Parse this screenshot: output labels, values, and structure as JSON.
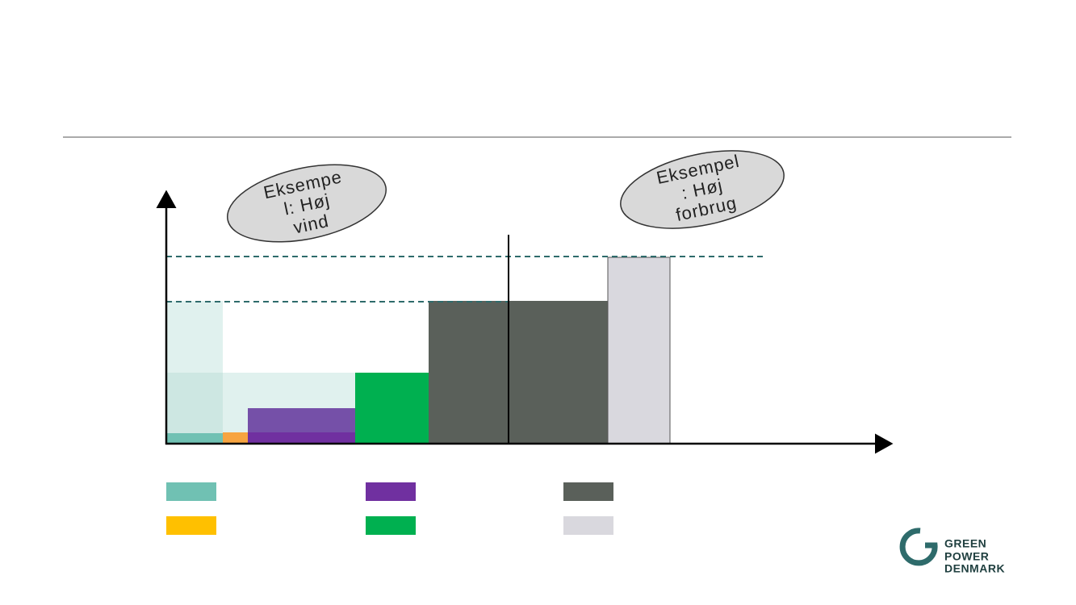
{
  "callouts": [
    {
      "lines": [
        "Eksempe",
        "l: Høj",
        "vind"
      ]
    },
    {
      "lines": [
        "Eksempel",
        ": Høj",
        "forbrug"
      ]
    }
  ],
  "logo": {
    "lines": [
      "GREEN",
      "POWER",
      "DENMARK"
    ]
  }
}
